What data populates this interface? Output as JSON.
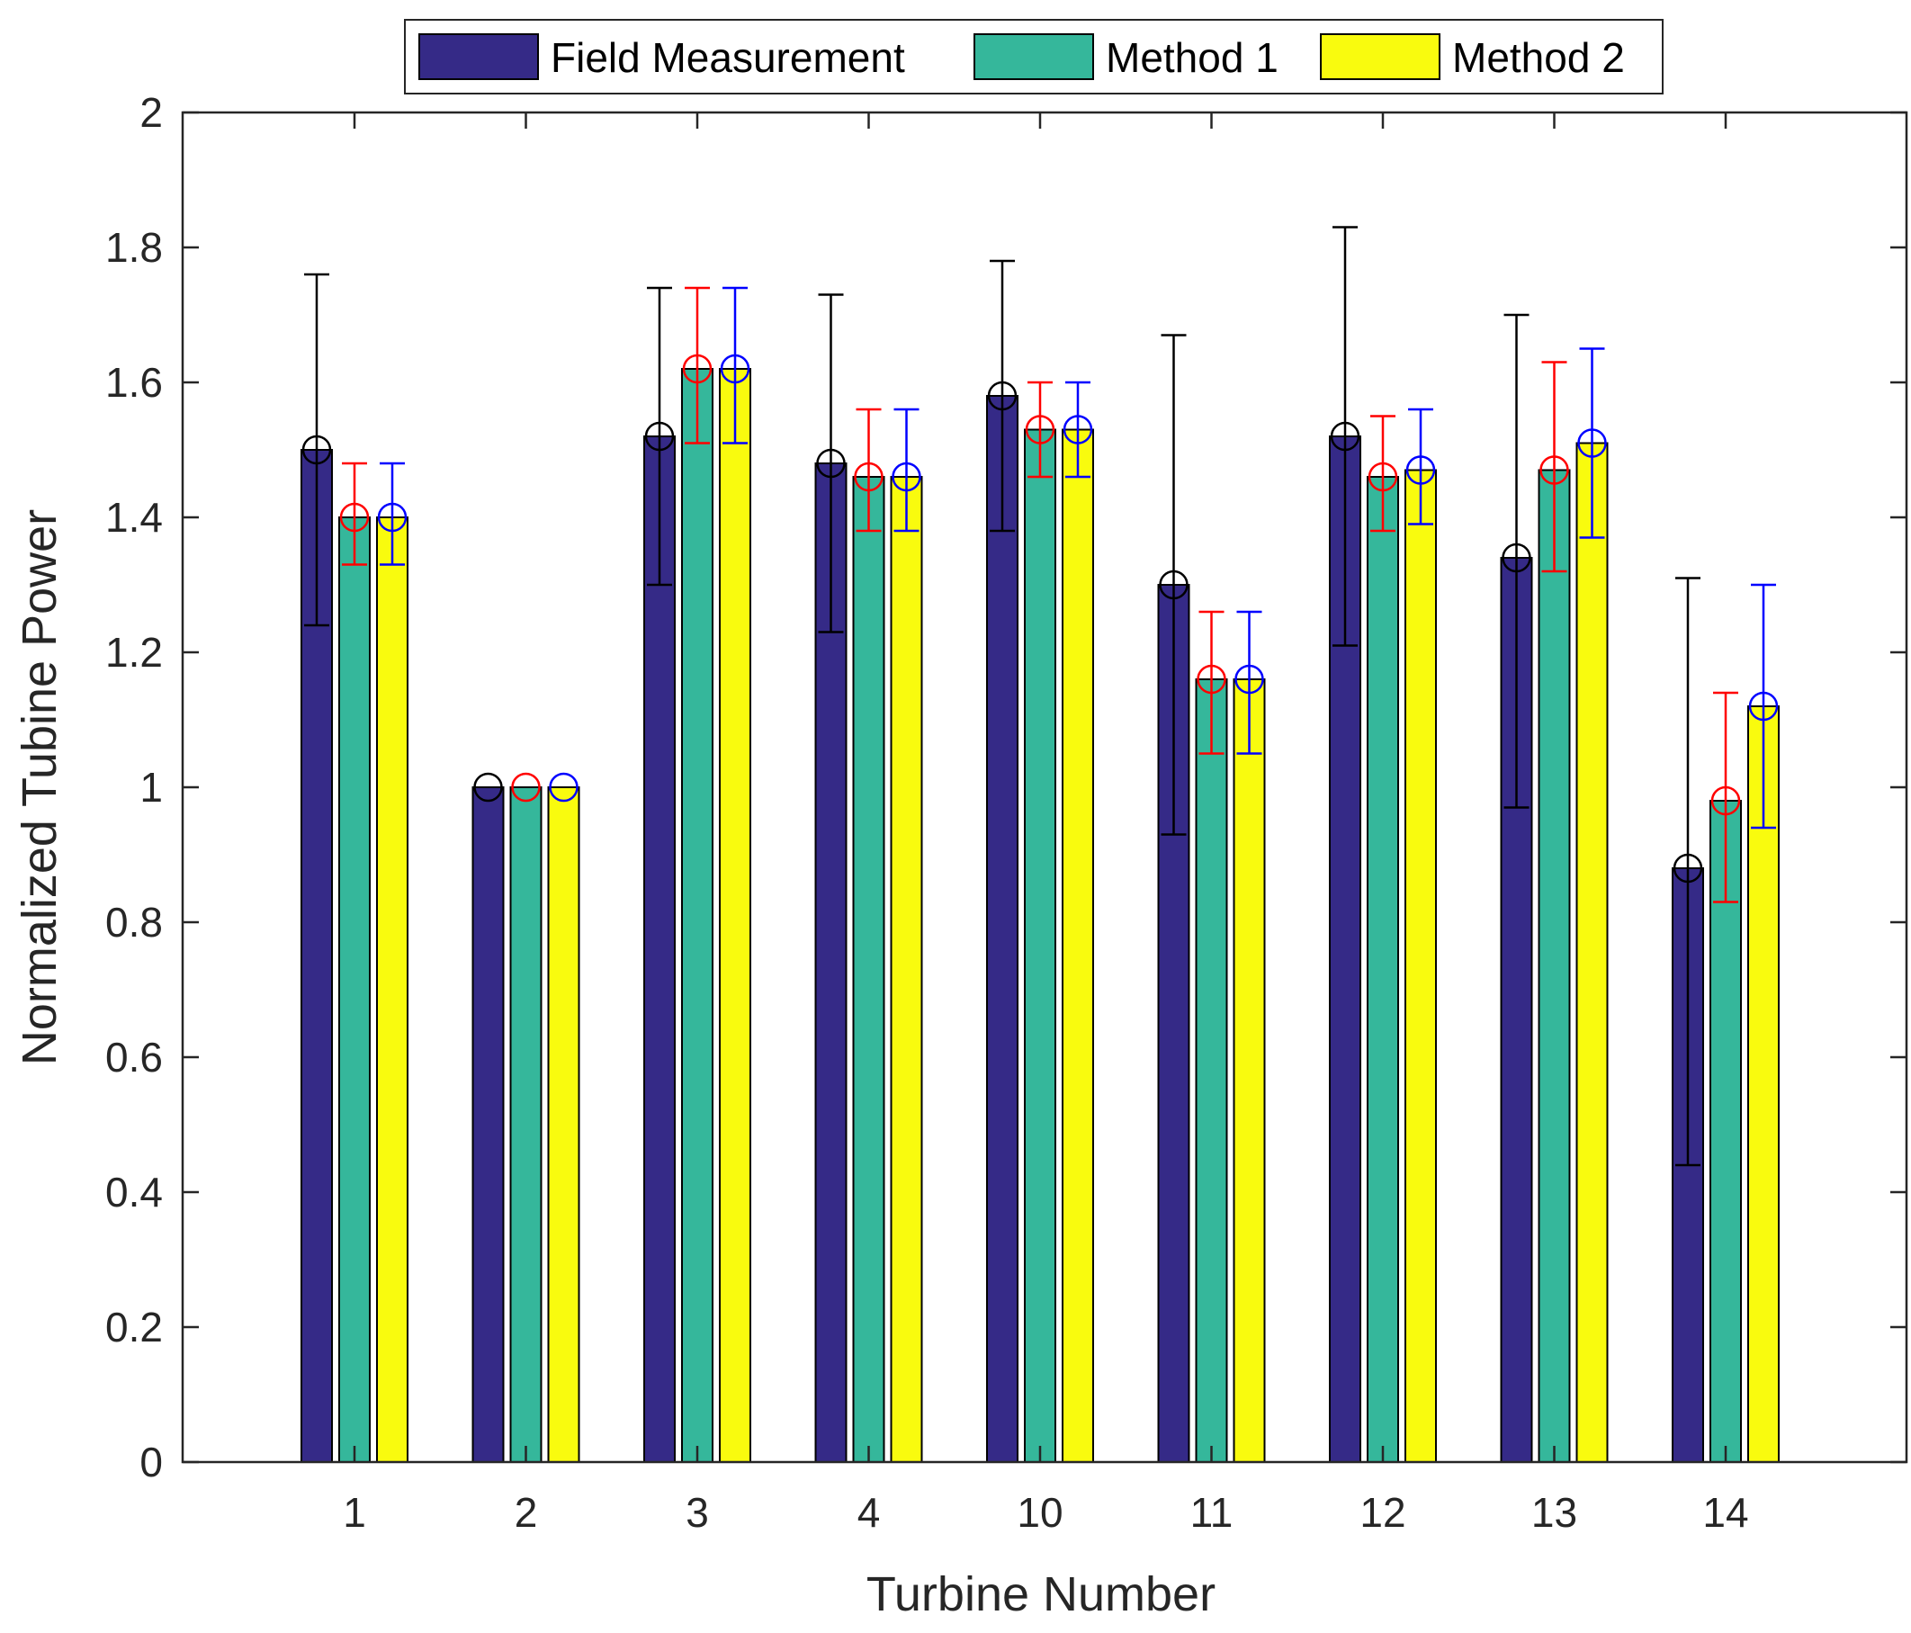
{
  "chart_data": {
    "type": "bar",
    "title": "",
    "xlabel": "Turbine Number",
    "ylabel": "Normalized Tubine Power",
    "ylim": [
      0,
      2
    ],
    "yticks": [
      "0",
      "0.2",
      "0.4",
      "0.6",
      "0.8",
      "1",
      "1.2",
      "1.4",
      "1.6",
      "1.8",
      "2"
    ],
    "ytick_values": [
      0,
      0.2,
      0.4,
      0.6,
      0.8,
      1.0,
      1.2,
      1.4,
      1.6,
      1.8,
      2.0
    ],
    "categories": [
      "1",
      "2",
      "3",
      "4",
      "10",
      "11",
      "12",
      "13",
      "14"
    ],
    "grid": false,
    "legend_position": "top-center-outside",
    "series": [
      {
        "name": "Field Measurement",
        "color": "#352a87",
        "error_color": "#000000",
        "values": [
          1.5,
          1.0,
          1.52,
          1.48,
          1.58,
          1.3,
          1.52,
          1.34,
          0.88
        ],
        "err_low": [
          1.24,
          1.0,
          1.3,
          1.23,
          1.38,
          0.93,
          1.21,
          0.97,
          0.44
        ],
        "err_high": [
          1.76,
          1.0,
          1.74,
          1.73,
          1.78,
          1.67,
          1.83,
          1.7,
          1.31
        ]
      },
      {
        "name": "Method 1",
        "color": "#35b79b",
        "error_color": "#ff0000",
        "values": [
          1.4,
          1.0,
          1.62,
          1.46,
          1.53,
          1.16,
          1.46,
          1.47,
          0.98
        ],
        "err_low": [
          1.33,
          1.0,
          1.51,
          1.38,
          1.46,
          1.05,
          1.38,
          1.32,
          0.83
        ],
        "err_high": [
          1.48,
          1.0,
          1.74,
          1.56,
          1.6,
          1.26,
          1.55,
          1.63,
          1.14
        ]
      },
      {
        "name": "Method 2",
        "color": "#f9fb0e",
        "error_color": "#0000ff",
        "values": [
          1.4,
          1.0,
          1.62,
          1.46,
          1.53,
          1.16,
          1.47,
          1.51,
          1.12
        ],
        "err_low": [
          1.33,
          1.0,
          1.51,
          1.38,
          1.46,
          1.05,
          1.39,
          1.37,
          0.94
        ],
        "err_high": [
          1.48,
          1.0,
          1.74,
          1.56,
          1.6,
          1.26,
          1.56,
          1.65,
          1.3
        ]
      }
    ]
  }
}
